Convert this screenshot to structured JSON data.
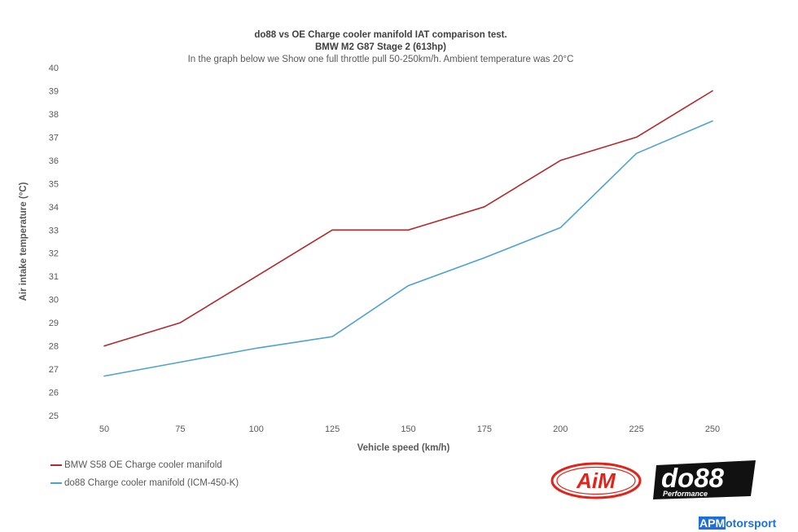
{
  "header": {
    "title": "do88 vs OE Charge cooler manifold IAT comparison test.",
    "subtitle": "BMW M2 G87 Stage 2  (613hp)",
    "note": "In the graph below we Show one full throttle pull 50-250km/h. Ambient temperature was 20°C"
  },
  "chart_data": {
    "type": "line",
    "x": [
      50,
      75,
      100,
      125,
      150,
      175,
      200,
      225,
      250
    ],
    "xlabel": "Vehicle speed (km/h)",
    "ylabel": "Air intake temperature (°C)",
    "ylim": [
      25,
      40
    ],
    "y_ticks": [
      25,
      26,
      27,
      28,
      29,
      30,
      31,
      32,
      33,
      34,
      35,
      36,
      37,
      38,
      39,
      40
    ],
    "grid": false,
    "legend_position": "bottom-left",
    "series": [
      {
        "name": "BMW S58 OE Charge cooler manifold",
        "color": "#b3282d",
        "values": [
          28,
          29,
          31,
          33,
          33,
          34,
          36,
          37,
          39
        ]
      },
      {
        "name": "do88 Charge cooler manifold (ICM-450-K)",
        "color": "#4ea3cc",
        "values": [
          26.7,
          27.3,
          27.9,
          28.4,
          30.6,
          31.8,
          33.1,
          36.3,
          37.7
        ]
      }
    ]
  },
  "logos": {
    "aim": {
      "text": "AiM",
      "color": "#e32219"
    },
    "do88": {
      "text": "do88",
      "sub": "Performance"
    }
  },
  "footer": {
    "brand_prefix": "APM",
    "brand_suffix": "otorsport"
  }
}
